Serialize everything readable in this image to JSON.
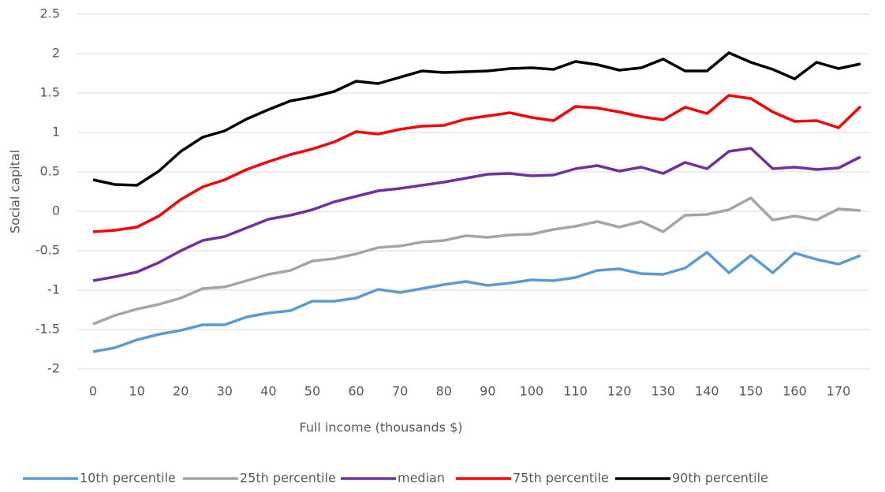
{
  "chart_data": {
    "type": "line",
    "x_label": "Full income (thousands $)",
    "y_label": "Social capital",
    "x": [
      0,
      5,
      10,
      15,
      20,
      25,
      30,
      35,
      40,
      45,
      50,
      55,
      60,
      65,
      70,
      75,
      80,
      85,
      90,
      95,
      100,
      105,
      110,
      115,
      120,
      125,
      130,
      135,
      140,
      145,
      150,
      155,
      160,
      165,
      170,
      175
    ],
    "xlim": [
      -3.6,
      177
    ],
    "xticks": [
      0,
      10,
      20,
      30,
      40,
      50,
      60,
      70,
      80,
      90,
      100,
      110,
      120,
      130,
      140,
      150,
      160,
      170
    ],
    "ylim": [
      -2,
      2.5
    ],
    "yticks": [
      -2,
      -1.5,
      -1,
      -0.5,
      0,
      0.5,
      1,
      1.5,
      2,
      2.5
    ],
    "grid": true,
    "legend": "bottom",
    "series": [
      {
        "name": "10th percentile",
        "color": "#5b9bd5",
        "values": [
          -1.78,
          -1.73,
          -1.63,
          -1.56,
          -1.51,
          -1.44,
          -1.44,
          -1.34,
          -1.29,
          -1.26,
          -1.14,
          -1.14,
          -1.1,
          -0.99,
          -1.03,
          -0.98,
          -0.93,
          -0.89,
          -0.94,
          -0.91,
          -0.87,
          -0.88,
          -0.84,
          -0.75,
          -0.73,
          -0.79,
          -0.8,
          -0.72,
          -0.52,
          -0.78,
          -0.56,
          -0.78,
          -0.53,
          -0.61,
          -0.67,
          -0.56
        ]
      },
      {
        "name": "25th percentile",
        "color": "#a5a5a5",
        "values": [
          -1.43,
          -1.32,
          -1.24,
          -1.18,
          -1.1,
          -0.98,
          -0.96,
          -0.88,
          -0.8,
          -0.75,
          -0.63,
          -0.6,
          -0.54,
          -0.46,
          -0.44,
          -0.39,
          -0.37,
          -0.31,
          -0.33,
          -0.3,
          -0.29,
          -0.23,
          -0.19,
          -0.13,
          -0.2,
          -0.13,
          -0.26,
          -0.05,
          -0.04,
          0.02,
          0.17,
          -0.11,
          -0.06,
          -0.11,
          0.03,
          0.01
        ]
      },
      {
        "name": "median",
        "color": "#7030a0",
        "values": [
          -0.88,
          -0.83,
          -0.77,
          -0.65,
          -0.5,
          -0.37,
          -0.32,
          -0.21,
          -0.1,
          -0.05,
          0.02,
          0.12,
          0.19,
          0.26,
          0.29,
          0.33,
          0.37,
          0.42,
          0.47,
          0.48,
          0.45,
          0.46,
          0.54,
          0.58,
          0.51,
          0.56,
          0.48,
          0.62,
          0.54,
          0.76,
          0.8,
          0.54,
          0.56,
          0.53,
          0.55,
          0.69
        ]
      },
      {
        "name": "75th percentile",
        "color": "#ff0000",
        "values": [
          -0.26,
          -0.24,
          -0.2,
          -0.06,
          0.15,
          0.31,
          0.4,
          0.53,
          0.63,
          0.72,
          0.79,
          0.88,
          1.01,
          0.98,
          1.04,
          1.08,
          1.09,
          1.17,
          1.21,
          1.25,
          1.19,
          1.15,
          1.33,
          1.31,
          1.26,
          1.2,
          1.16,
          1.32,
          1.24,
          1.47,
          1.43,
          1.26,
          1.14,
          1.15,
          1.06,
          1.33
        ]
      },
      {
        "name": "90th percentile",
        "color": "#000000",
        "values": [
          0.4,
          0.34,
          0.33,
          0.51,
          0.76,
          0.94,
          1.02,
          1.17,
          1.29,
          1.4,
          1.45,
          1.52,
          1.65,
          1.62,
          1.7,
          1.78,
          1.76,
          1.77,
          1.78,
          1.81,
          1.82,
          1.8,
          1.9,
          1.86,
          1.79,
          1.82,
          1.93,
          1.78,
          1.78,
          2.01,
          1.89,
          1.8,
          1.68,
          1.89,
          1.81,
          1.87
        ]
      }
    ]
  }
}
